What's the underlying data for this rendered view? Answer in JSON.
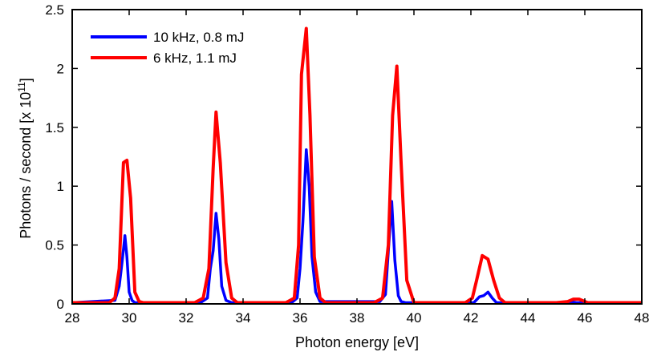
{
  "chart_data": {
    "type": "line",
    "title": "",
    "xlabel": "Photon energy [eV]",
    "ylabel": "Photons / second [x 10",
    "ylabel_superscript": "11",
    "ylabel_suffix": "]",
    "xlim": [
      28,
      48
    ],
    "ylim": [
      0,
      2.5
    ],
    "xticks": [
      28,
      30,
      32,
      34,
      36,
      38,
      40,
      42,
      44,
      46,
      48
    ],
    "xtick_labels": [
      "28",
      "30",
      "32",
      "34",
      "36",
      "38",
      "40",
      "42",
      "44",
      "46",
      "48"
    ],
    "yticks": [
      0,
      0.5,
      1,
      1.5,
      2,
      2.5
    ],
    "ytick_labels": [
      "0",
      "0.5",
      "1",
      "1.5",
      "2",
      "2.5"
    ],
    "grid": false,
    "legend_position": "top-left",
    "series": [
      {
        "name": "10 kHz, 0.8 mJ",
        "color": "#0000ff",
        "x": [
          28,
          29.5,
          29.65,
          29.75,
          29.85,
          29.92,
          30.0,
          30.1,
          30.2,
          30.4,
          32.5,
          32.75,
          32.85,
          32.95,
          33.05,
          33.15,
          33.25,
          33.4,
          33.6,
          35.7,
          35.9,
          36.0,
          36.1,
          36.22,
          36.32,
          36.42,
          36.55,
          36.7,
          38.8,
          39.0,
          39.1,
          39.22,
          39.33,
          39.45,
          39.55,
          39.7,
          42.1,
          42.3,
          42.45,
          42.6,
          42.75,
          42.9,
          43.1,
          45.3,
          45.5,
          45.7,
          46.0,
          48
        ],
        "y": [
          0.01,
          0.03,
          0.15,
          0.35,
          0.58,
          0.4,
          0.1,
          0.03,
          0.01,
          0.01,
          0.01,
          0.05,
          0.3,
          0.45,
          0.77,
          0.55,
          0.15,
          0.03,
          0.01,
          0.01,
          0.05,
          0.3,
          0.7,
          1.31,
          1.0,
          0.4,
          0.1,
          0.02,
          0.02,
          0.08,
          0.45,
          0.87,
          0.37,
          0.07,
          0.02,
          0.01,
          0.01,
          0.06,
          0.07,
          0.1,
          0.05,
          0.01,
          0.01,
          0.01,
          0.02,
          0.01,
          0.01,
          0.01
        ]
      },
      {
        "name": "6 kHz, 1.1 mJ",
        "color": "#ff0000",
        "x": [
          28,
          29.3,
          29.5,
          29.65,
          29.8,
          29.92,
          30.05,
          30.2,
          30.35,
          30.5,
          32.3,
          32.6,
          32.8,
          32.95,
          33.05,
          33.2,
          33.4,
          33.6,
          33.8,
          35.5,
          35.8,
          35.95,
          36.05,
          36.22,
          36.35,
          36.5,
          36.7,
          36.9,
          38.6,
          38.9,
          39.1,
          39.25,
          39.4,
          39.55,
          39.75,
          40.0,
          41.8,
          42.05,
          42.2,
          42.4,
          42.6,
          42.8,
          43.0,
          43.2,
          45.0,
          45.4,
          45.6,
          45.8,
          46.1,
          46.5,
          48
        ],
        "y": [
          0.01,
          0.01,
          0.05,
          0.3,
          1.2,
          1.22,
          0.9,
          0.1,
          0.02,
          0.01,
          0.01,
          0.05,
          0.3,
          1.15,
          1.63,
          1.2,
          0.35,
          0.05,
          0.01,
          0.01,
          0.05,
          0.5,
          1.95,
          2.34,
          1.6,
          0.4,
          0.05,
          0.01,
          0.01,
          0.05,
          0.5,
          1.6,
          2.02,
          1.2,
          0.2,
          0.01,
          0.01,
          0.05,
          0.2,
          0.41,
          0.38,
          0.2,
          0.05,
          0.01,
          0.01,
          0.02,
          0.04,
          0.04,
          0.01,
          0.01,
          0.01
        ]
      }
    ]
  }
}
